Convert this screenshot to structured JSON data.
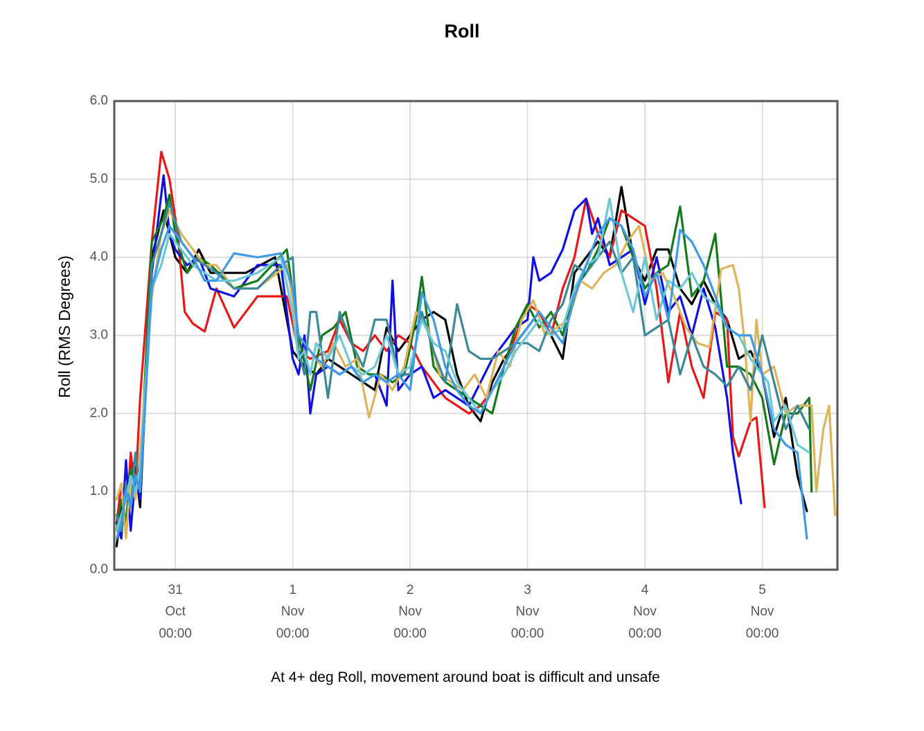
{
  "chart_data": {
    "type": "line",
    "title": "Roll",
    "ylabel": "Roll (RMS Degrees)",
    "xlabel": "",
    "caption": "At 4+ deg Roll, movement around boat is difficult and unsafe",
    "ylim": [
      0,
      6
    ],
    "xlim": [
      -0.52,
      5.64
    ],
    "y_ticks": [
      "0.0",
      "1.0",
      "2.0",
      "3.0",
      "4.0",
      "5.0",
      "6.0"
    ],
    "x_ticks": [
      {
        "day": "31",
        "month": "Oct",
        "time": "00:00"
      },
      {
        "day": "1",
        "month": "Nov",
        "time": "00:00"
      },
      {
        "day": "2",
        "month": "Nov",
        "time": "00:00"
      },
      {
        "day": "3",
        "month": "Nov",
        "time": "00:00"
      },
      {
        "day": "4",
        "month": "Nov",
        "time": "00:00"
      },
      {
        "day": "5",
        "month": "Nov",
        "time": "00:00"
      }
    ],
    "grid": true,
    "series": [
      {
        "name": "black",
        "color": "#000000",
        "x": [
          -0.5,
          -0.46,
          -0.42,
          -0.38,
          -0.34,
          -0.3,
          -0.2,
          -0.1,
          -0.05,
          0.0,
          0.1,
          0.2,
          0.3,
          0.6,
          0.85,
          1.0,
          1.1,
          1.2,
          1.3,
          1.4,
          1.5,
          1.6,
          1.7,
          1.8,
          1.9,
          2.0,
          2.1,
          2.2,
          2.3,
          2.4,
          2.5,
          2.6,
          2.7,
          2.8,
          2.9,
          3.0,
          3.1,
          3.2,
          3.3,
          3.4,
          3.5,
          3.6,
          3.7,
          3.8,
          3.9,
          4.0,
          4.1,
          4.2,
          4.3,
          4.4,
          4.5,
          4.6,
          4.7,
          4.8,
          4.9,
          5.0,
          5.1,
          5.2,
          5.3,
          5.38
        ],
        "y": [
          0.3,
          0.8,
          0.5,
          1.4,
          1.3,
          0.8,
          4.0,
          4.6,
          4.3,
          4.0,
          3.8,
          4.1,
          3.8,
          3.8,
          4.0,
          2.8,
          2.6,
          2.5,
          2.7,
          2.6,
          2.5,
          2.4,
          2.3,
          3.1,
          2.8,
          3.0,
          3.2,
          3.3,
          3.2,
          2.5,
          2.1,
          1.9,
          2.4,
          2.7,
          2.9,
          3.1,
          3.3,
          3.0,
          2.7,
          3.8,
          4.0,
          4.2,
          4.0,
          4.9,
          4.0,
          3.7,
          4.1,
          4.1,
          3.6,
          3.4,
          3.7,
          3.4,
          3.2,
          2.7,
          2.8,
          2.5,
          1.7,
          2.2,
          1.2,
          0.75
        ]
      },
      {
        "name": "red",
        "color": "#e81818",
        "x": [
          -0.5,
          -0.46,
          -0.42,
          -0.38,
          -0.34,
          -0.3,
          -0.2,
          -0.12,
          -0.05,
          0.02,
          0.08,
          0.15,
          0.25,
          0.35,
          0.5,
          0.7,
          0.95,
          1.05,
          1.15,
          1.3,
          1.4,
          1.5,
          1.6,
          1.7,
          1.8,
          1.9,
          2.0,
          2.1,
          2.2,
          2.3,
          2.4,
          2.5,
          2.6,
          2.7,
          2.8,
          2.9,
          3.0,
          3.1,
          3.2,
          3.3,
          3.4,
          3.5,
          3.6,
          3.7,
          3.8,
          3.9,
          4.0,
          4.1,
          4.2,
          4.3,
          4.4,
          4.5,
          4.6,
          4.7,
          4.75,
          4.8,
          4.9,
          4.95,
          5.02
        ],
        "y": [
          0.6,
          1.1,
          0.5,
          1.5,
          1.0,
          2.2,
          4.2,
          5.35,
          5.0,
          4.3,
          3.3,
          3.15,
          3.05,
          3.6,
          3.1,
          3.5,
          3.5,
          2.8,
          2.7,
          2.8,
          3.2,
          2.9,
          2.8,
          3.0,
          2.8,
          3.0,
          2.9,
          2.6,
          2.4,
          2.2,
          2.1,
          2.0,
          2.1,
          2.3,
          2.6,
          3.0,
          3.4,
          3.3,
          3.0,
          3.6,
          4.0,
          4.75,
          4.3,
          4.0,
          4.6,
          4.5,
          4.4,
          3.6,
          2.4,
          3.3,
          2.6,
          2.2,
          3.3,
          3.2,
          1.7,
          1.45,
          1.9,
          1.95,
          0.8
        ]
      },
      {
        "name": "blue",
        "color": "#1010e0",
        "x": [
          -0.5,
          -0.46,
          -0.42,
          -0.38,
          -0.34,
          -0.3,
          -0.2,
          -0.1,
          -0.05,
          0.0,
          0.1,
          0.2,
          0.3,
          0.5,
          0.7,
          0.9,
          1.0,
          1.05,
          1.1,
          1.15,
          1.2,
          1.3,
          1.4,
          1.5,
          1.6,
          1.7,
          1.8,
          1.85,
          1.9,
          2.0,
          2.1,
          2.2,
          2.3,
          2.4,
          2.5,
          2.6,
          2.7,
          2.8,
          2.9,
          3.0,
          3.05,
          3.1,
          3.2,
          3.3,
          3.4,
          3.5,
          3.55,
          3.6,
          3.7,
          3.8,
          3.9,
          4.0,
          4.1,
          4.2,
          4.3,
          4.4,
          4.5,
          4.6,
          4.7,
          4.75,
          4.82
        ],
        "y": [
          0.6,
          0.4,
          1.4,
          0.5,
          1.2,
          0.9,
          3.8,
          5.05,
          4.3,
          4.1,
          3.9,
          4.0,
          3.6,
          3.5,
          3.9,
          3.9,
          2.7,
          2.5,
          3.0,
          2.0,
          2.5,
          2.6,
          2.5,
          2.6,
          2.4,
          2.5,
          2.1,
          3.7,
          2.3,
          2.5,
          2.6,
          2.2,
          2.3,
          2.2,
          2.1,
          2.4,
          2.7,
          2.9,
          3.1,
          3.2,
          4.0,
          3.7,
          3.8,
          4.1,
          4.6,
          4.75,
          4.3,
          4.5,
          3.9,
          4.0,
          4.1,
          3.4,
          4.0,
          3.3,
          3.5,
          3.0,
          3.6,
          3.1,
          2.2,
          1.5,
          0.85
        ]
      },
      {
        "name": "green",
        "color": "#137a1a",
        "x": [
          -0.5,
          -0.46,
          -0.42,
          -0.38,
          -0.34,
          -0.3,
          -0.2,
          -0.1,
          -0.05,
          0.0,
          0.1,
          0.2,
          0.3,
          0.5,
          0.7,
          0.95,
          1.05,
          1.15,
          1.25,
          1.35,
          1.45,
          1.55,
          1.65,
          1.75,
          1.85,
          1.95,
          2.05,
          2.1,
          2.2,
          2.3,
          2.4,
          2.5,
          2.6,
          2.7,
          2.8,
          2.9,
          3.0,
          3.1,
          3.2,
          3.3,
          3.4,
          3.5,
          3.6,
          3.7,
          3.8,
          3.9,
          4.0,
          4.1,
          4.2,
          4.3,
          4.4,
          4.5,
          4.6,
          4.7,
          4.8,
          4.9,
          5.0,
          5.1,
          5.2,
          5.3,
          5.4,
          5.42
        ],
        "y": [
          0.5,
          0.9,
          0.6,
          1.3,
          1.0,
          1.2,
          4.2,
          4.5,
          4.8,
          4.3,
          3.8,
          4.0,
          3.9,
          3.6,
          3.7,
          4.1,
          3.0,
          2.3,
          3.0,
          3.1,
          3.3,
          2.6,
          2.5,
          2.5,
          2.4,
          2.5,
          3.2,
          3.75,
          2.6,
          2.4,
          2.3,
          2.2,
          2.1,
          2.0,
          2.6,
          3.1,
          3.4,
          3.1,
          3.3,
          3.0,
          3.6,
          3.8,
          4.1,
          4.5,
          4.4,
          4.0,
          3.6,
          3.8,
          3.9,
          4.65,
          3.5,
          3.7,
          4.3,
          2.6,
          2.6,
          2.5,
          2.2,
          1.35,
          2.0,
          2.0,
          2.2,
          1.0
        ]
      },
      {
        "name": "tan",
        "color": "#dcb45c",
        "x": [
          -0.5,
          -0.46,
          -0.42,
          -0.38,
          -0.34,
          -0.3,
          -0.2,
          -0.12,
          -0.05,
          0.05,
          0.15,
          0.25,
          0.35,
          0.5,
          0.7,
          0.95,
          1.05,
          1.15,
          1.25,
          1.35,
          1.45,
          1.55,
          1.65,
          1.75,
          1.85,
          1.95,
          2.05,
          2.15,
          2.25,
          2.35,
          2.45,
          2.55,
          2.65,
          2.75,
          2.85,
          2.95,
          3.05,
          3.15,
          3.25,
          3.35,
          3.45,
          3.55,
          3.65,
          3.75,
          3.85,
          3.95,
          4.05,
          4.15,
          4.25,
          4.35,
          4.45,
          4.55,
          4.65,
          4.75,
          4.8,
          4.85,
          4.9,
          4.95,
          5.0,
          5.1,
          5.2,
          5.3,
          5.42,
          5.46,
          5.52,
          5.57,
          5.62
        ],
        "y": [
          0.9,
          1.1,
          0.4,
          1.2,
          0.9,
          1.5,
          3.5,
          4.3,
          4.6,
          4.3,
          4.1,
          3.9,
          3.9,
          3.6,
          3.6,
          3.9,
          3.0,
          2.8,
          2.6,
          2.9,
          2.6,
          2.7,
          1.95,
          2.5,
          2.3,
          2.6,
          3.3,
          3.1,
          2.5,
          2.4,
          2.3,
          2.5,
          2.2,
          2.8,
          2.6,
          3.2,
          3.45,
          3.0,
          3.1,
          3.2,
          3.7,
          3.6,
          3.8,
          3.9,
          4.2,
          4.4,
          3.7,
          3.8,
          3.5,
          3.1,
          2.9,
          2.85,
          3.85,
          3.9,
          3.6,
          2.9,
          1.9,
          3.2,
          2.5,
          2.6,
          2.0,
          2.1,
          2.1,
          1.0,
          1.8,
          2.1,
          0.7
        ]
      },
      {
        "name": "steel",
        "color": "#3b8896",
        "x": [
          -0.5,
          -0.46,
          -0.42,
          -0.38,
          -0.34,
          -0.3,
          -0.2,
          -0.12,
          -0.05,
          0.05,
          0.15,
          0.25,
          0.35,
          0.5,
          0.7,
          0.9,
          1.0,
          1.05,
          1.1,
          1.15,
          1.2,
          1.3,
          1.4,
          1.5,
          1.6,
          1.7,
          1.8,
          1.9,
          2.0,
          2.1,
          2.2,
          2.3,
          2.4,
          2.5,
          2.6,
          2.7,
          2.8,
          2.9,
          3.0,
          3.1,
          3.2,
          3.3,
          3.4,
          3.5,
          3.6,
          3.7,
          3.8,
          3.9,
          4.0,
          4.1,
          4.2,
          4.3,
          4.4,
          4.5,
          4.6,
          4.7,
          4.8,
          4.9,
          5.0,
          5.1,
          5.2,
          5.3,
          5.4
        ],
        "y": [
          0.7,
          0.5,
          1.1,
          0.8,
          1.5,
          1.0,
          3.9,
          4.3,
          4.7,
          4.2,
          4.0,
          3.9,
          3.8,
          3.6,
          3.6,
          3.9,
          4.0,
          2.8,
          2.5,
          3.3,
          3.3,
          2.2,
          3.3,
          2.9,
          2.6,
          3.2,
          3.2,
          2.5,
          2.5,
          3.3,
          2.8,
          2.4,
          3.4,
          2.8,
          2.7,
          2.7,
          2.8,
          2.9,
          2.9,
          2.8,
          3.2,
          3.4,
          3.9,
          3.8,
          4.0,
          4.2,
          3.8,
          4.0,
          3.0,
          3.1,
          3.2,
          2.5,
          3.0,
          2.6,
          2.5,
          2.35,
          2.6,
          2.3,
          3.0,
          2.4,
          1.8,
          2.1,
          1.8
        ]
      },
      {
        "name": "cyan",
        "color": "#6cc8d8",
        "x": [
          -0.5,
          -0.46,
          -0.42,
          -0.38,
          -0.34,
          -0.3,
          -0.2,
          -0.12,
          -0.05,
          0.05,
          0.15,
          0.25,
          0.35,
          0.5,
          0.7,
          0.9,
          1.0,
          1.05,
          1.1,
          1.15,
          1.2,
          1.3,
          1.4,
          1.5,
          1.6,
          1.7,
          1.8,
          1.9,
          2.0,
          2.1,
          2.2,
          2.3,
          2.4,
          2.5,
          2.6,
          2.7,
          2.8,
          2.9,
          3.0,
          3.1,
          3.2,
          3.3,
          3.4,
          3.5,
          3.6,
          3.7,
          3.8,
          3.9,
          4.0,
          4.1,
          4.2,
          4.3,
          4.4,
          4.5,
          4.6,
          4.7,
          4.8,
          4.9,
          5.0,
          5.05,
          5.1,
          5.2,
          5.3,
          5.4
        ],
        "y": [
          0.5,
          0.7,
          0.9,
          1.2,
          1.0,
          1.3,
          3.6,
          3.9,
          4.3,
          4.1,
          3.9,
          3.8,
          3.7,
          3.7,
          3.8,
          4.0,
          3.3,
          2.7,
          2.8,
          2.5,
          2.9,
          2.7,
          3.0,
          2.6,
          2.5,
          2.6,
          3.0,
          2.5,
          2.6,
          3.2,
          2.9,
          2.8,
          2.4,
          2.2,
          2.0,
          2.3,
          2.5,
          2.8,
          3.0,
          3.2,
          3.0,
          3.1,
          3.6,
          3.9,
          4.0,
          4.75,
          3.8,
          3.3,
          4.0,
          3.2,
          3.7,
          3.6,
          3.8,
          3.5,
          3.4,
          3.1,
          3.0,
          2.7,
          2.5,
          2.4,
          1.9,
          2.1,
          1.6,
          1.5
        ]
      },
      {
        "name": "lightblue",
        "color": "#3f9ae8",
        "x": [
          -0.5,
          -0.46,
          -0.42,
          -0.38,
          -0.34,
          -0.3,
          -0.2,
          -0.12,
          -0.05,
          0.05,
          0.15,
          0.25,
          0.35,
          0.5,
          0.7,
          0.9,
          1.0,
          1.05,
          1.1,
          1.2,
          1.3,
          1.4,
          1.5,
          1.6,
          1.7,
          1.8,
          1.9,
          2.0,
          2.05,
          2.1,
          2.2,
          2.3,
          2.4,
          2.5,
          2.6,
          2.7,
          2.8,
          2.9,
          3.0,
          3.1,
          3.2,
          3.3,
          3.4,
          3.5,
          3.6,
          3.7,
          3.8,
          3.9,
          4.0,
          4.1,
          4.2,
          4.3,
          4.4,
          4.5,
          4.6,
          4.7,
          4.8,
          4.9,
          5.0,
          5.1,
          5.2,
          5.3,
          5.38
        ],
        "y": [
          0.4,
          0.6,
          1.0,
          0.8,
          1.2,
          1.0,
          3.6,
          4.1,
          4.4,
          4.2,
          4.0,
          3.7,
          3.7,
          4.05,
          4.0,
          4.05,
          3.6,
          3.0,
          2.9,
          2.7,
          2.6,
          2.5,
          2.6,
          2.4,
          2.5,
          2.4,
          2.5,
          2.3,
          2.9,
          3.55,
          3.2,
          2.6,
          2.3,
          2.1,
          2.0,
          2.3,
          2.6,
          2.9,
          3.1,
          3.3,
          3.1,
          2.9,
          3.5,
          3.9,
          4.3,
          4.5,
          4.4,
          4.1,
          3.5,
          3.8,
          3.2,
          4.35,
          4.2,
          3.9,
          3.5,
          3.1,
          3.0,
          3.0,
          2.5,
          1.8,
          1.6,
          1.5,
          0.4
        ]
      }
    ]
  }
}
